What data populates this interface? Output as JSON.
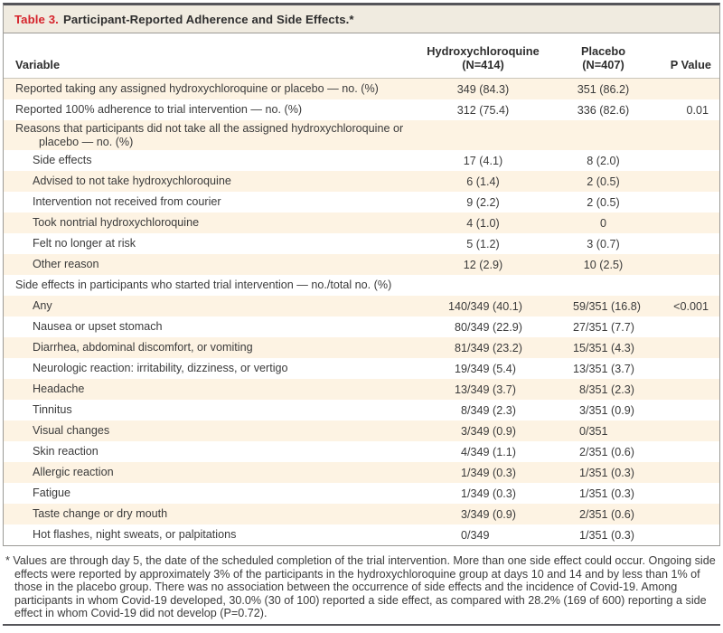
{
  "title": {
    "prefix": "Table 3.",
    "text": "Participant-Reported Adherence and Side Effects.*"
  },
  "columns": {
    "variable": "Variable",
    "group1_line1": "Hydroxychloroquine",
    "group1_line2": "(N=414)",
    "group2_line1": "Placebo",
    "group2_line2": "(N=407)",
    "p_value": "P Value"
  },
  "chart_data": {
    "type": "table",
    "title": "Table 3. Participant-Reported Adherence and Side Effects.",
    "columns": [
      "Variable",
      "Hydroxychloroquine (N=414)",
      "Placebo (N=407)",
      "P Value"
    ],
    "rows_note": "same rows as table.rows"
  },
  "table": {
    "rows": [
      {
        "label": "Reported taking any assigned hydroxychloroquine or placebo — no. (%)",
        "indent": 0,
        "hang": false,
        "hcq": "349 (84.3)",
        "placebo": "351 (86.2)",
        "p": ""
      },
      {
        "label": "Reported 100% adherence to trial intervention — no. (%)",
        "indent": 0,
        "hang": false,
        "hcq": "312 (75.4)",
        "placebo": "336 (82.6)",
        "p": "0.01"
      },
      {
        "label": "Reasons that participants did not take all the assigned hydroxychloroquine or placebo — no. (%)",
        "indent": 0,
        "hang": true,
        "hcq": "",
        "placebo": "",
        "p": ""
      },
      {
        "label": "Side effects",
        "indent": 1,
        "hang": false,
        "hcq": "17 (4.1)",
        "placebo": "8 (2.0)",
        "p": ""
      },
      {
        "label": "Advised to not take hydroxychloroquine",
        "indent": 1,
        "hang": false,
        "hcq": "6 (1.4)",
        "placebo": "2 (0.5)",
        "p": ""
      },
      {
        "label": "Intervention not received from courier",
        "indent": 1,
        "hang": false,
        "hcq": "9 (2.2)",
        "placebo": "2 (0.5)",
        "p": ""
      },
      {
        "label": "Took nontrial hydroxychloroquine",
        "indent": 1,
        "hang": false,
        "hcq": "4 (1.0)",
        "placebo": "0",
        "p": ""
      },
      {
        "label": "Felt no longer at risk",
        "indent": 1,
        "hang": false,
        "hcq": "5 (1.2)",
        "placebo": "3 (0.7)",
        "p": ""
      },
      {
        "label": "Other reason",
        "indent": 1,
        "hang": false,
        "hcq": "12 (2.9)",
        "placebo": "10 (2.5)",
        "p": ""
      },
      {
        "label": "Side effects in participants who started trial intervention — no./total no. (%)",
        "indent": 0,
        "hang": false,
        "hcq": "",
        "placebo": "",
        "p": ""
      },
      {
        "label": "Any",
        "indent": 1,
        "hang": false,
        "hcq": "140/349 (40.1)",
        "placebo": "59/351 (16.8)",
        "p": "<0.001"
      },
      {
        "label": "Nausea or upset stomach",
        "indent": 1,
        "hang": false,
        "hcq": "80/349 (22.9)",
        "placebo": "27/351 (7.7)",
        "p": ""
      },
      {
        "label": "Diarrhea, abdominal discomfort, or vomiting",
        "indent": 1,
        "hang": false,
        "hcq": "81/349 (23.2)",
        "placebo": "15/351 (4.3)",
        "p": ""
      },
      {
        "label": "Neurologic reaction: irritability, dizziness, or vertigo",
        "indent": 1,
        "hang": false,
        "hcq": "19/349 (5.4)",
        "placebo": "13/351 (3.7)",
        "p": ""
      },
      {
        "label": "Headache",
        "indent": 1,
        "hang": false,
        "hcq": "13/349 (3.7)",
        "placebo": "8/351 (2.3)",
        "p": ""
      },
      {
        "label": "Tinnitus",
        "indent": 1,
        "hang": false,
        "hcq": "8/349 (2.3)",
        "placebo": "3/351 (0.9)",
        "p": ""
      },
      {
        "label": "Visual changes",
        "indent": 1,
        "hang": false,
        "hcq": "3/349 (0.9)",
        "placebo": "0/351",
        "p": ""
      },
      {
        "label": "Skin reaction",
        "indent": 1,
        "hang": false,
        "hcq": "4/349 (1.1)",
        "placebo": "2/351 (0.6)",
        "p": ""
      },
      {
        "label": "Allergic reaction",
        "indent": 1,
        "hang": false,
        "hcq": "1/349 (0.3)",
        "placebo": "1/351 (0.3)",
        "p": ""
      },
      {
        "label": "Fatigue",
        "indent": 1,
        "hang": false,
        "hcq": "1/349 (0.3)",
        "placebo": "1/351 (0.3)",
        "p": ""
      },
      {
        "label": "Taste change or dry mouth",
        "indent": 1,
        "hang": false,
        "hcq": "3/349 (0.9)",
        "placebo": "2/351 (0.6)",
        "p": ""
      },
      {
        "label": "Hot flashes, night sweats, or palpitations",
        "indent": 1,
        "hang": false,
        "hcq": "0/349",
        "placebo": "1/351 (0.3)",
        "p": ""
      }
    ]
  },
  "footnote": "* Values are through day 5, the date of the scheduled completion of the trial intervention. More than one side effect could occur. Ongoing side effects were reported by approximately 3% of the participants in the hydroxychloroquine group at days 10 and 14 and by less than 1% of those in the placebo group. There was no association between the occurrence of side effects and the incidence of Covid-19. Among participants in whom Covid-19 developed, 30.0% (30 of 100) reported a side effect, as compared with 28.2% (169 of 600) reporting a side effect in whom Covid-19 did not develop (P=0.72).",
  "colors": {
    "accent_red": "#d5232b",
    "stripe_cream": "#fdf3e3",
    "titlebar_bg": "#f0ebe0",
    "rule_dark": "#55555a",
    "border_gray": "#9b9a96"
  }
}
